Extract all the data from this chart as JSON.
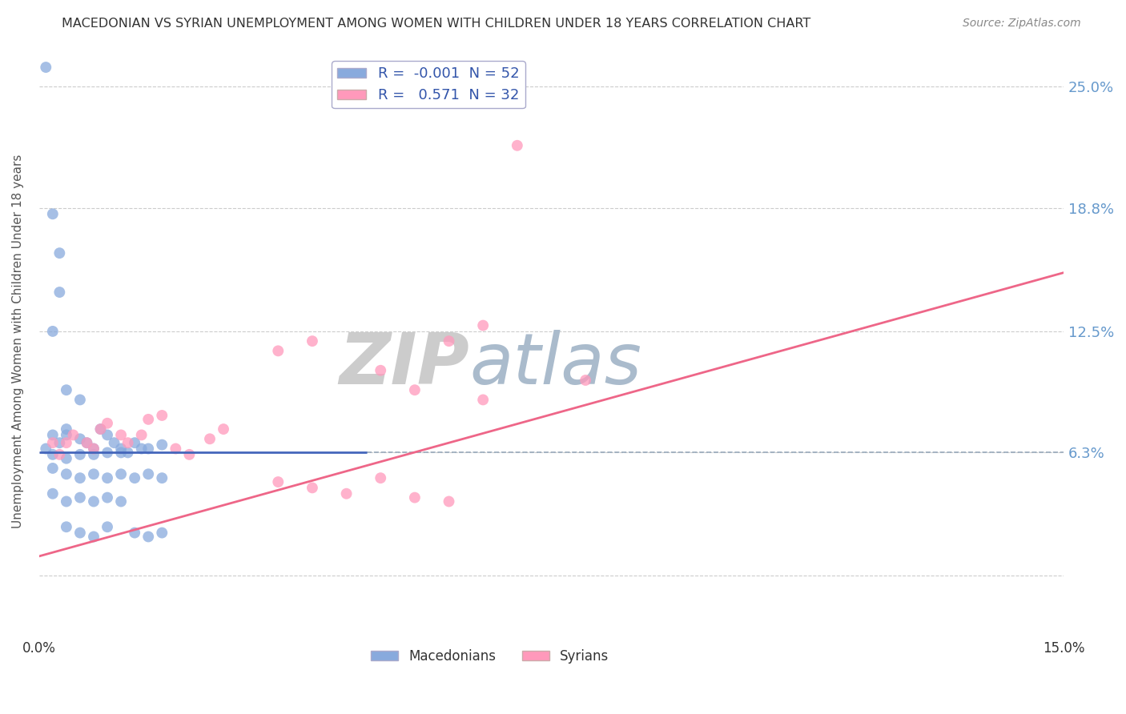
{
  "title": "MACEDONIAN VS SYRIAN UNEMPLOYMENT AMONG WOMEN WITH CHILDREN UNDER 18 YEARS CORRELATION CHART",
  "source": "Source: ZipAtlas.com",
  "ylabel": "Unemployment Among Women with Children Under 18 years",
  "xlim": [
    0.0,
    0.15
  ],
  "ylim": [
    -0.03,
    0.27
  ],
  "yticks": [
    0.0,
    0.063,
    0.125,
    0.188,
    0.25
  ],
  "ytick_labels": [
    "",
    "6.3%",
    "12.5%",
    "18.8%",
    "25.0%"
  ],
  "xticks": [
    0.0,
    0.15
  ],
  "xtick_labels": [
    "0.0%",
    "15.0%"
  ],
  "macedonian_color": "#88AADD",
  "syrian_color": "#FF99BB",
  "macedonian_R": -0.001,
  "macedonian_N": 52,
  "syrian_R": 0.571,
  "syrian_N": 32,
  "mac_line_x": [
    0.0,
    0.048
  ],
  "mac_line_y": [
    0.063,
    0.063
  ],
  "syr_line_x": [
    0.0,
    0.15
  ],
  "syr_line_y": [
    0.01,
    0.155
  ],
  "dashed_line_x": [
    0.048,
    0.15
  ],
  "dashed_line_y": [
    0.063,
    0.063
  ],
  "macedonian_scatter": [
    [
      0.002,
      0.185
    ],
    [
      0.003,
      0.165
    ],
    [
      0.001,
      0.26
    ],
    [
      0.003,
      0.145
    ],
    [
      0.002,
      0.125
    ],
    [
      0.004,
      0.095
    ],
    [
      0.006,
      0.09
    ],
    [
      0.004,
      0.075
    ],
    [
      0.002,
      0.072
    ],
    [
      0.001,
      0.065
    ],
    [
      0.003,
      0.068
    ],
    [
      0.004,
      0.072
    ],
    [
      0.006,
      0.07
    ],
    [
      0.007,
      0.068
    ],
    [
      0.009,
      0.075
    ],
    [
      0.01,
      0.072
    ],
    [
      0.008,
      0.065
    ],
    [
      0.011,
      0.068
    ],
    [
      0.012,
      0.065
    ],
    [
      0.014,
      0.068
    ],
    [
      0.016,
      0.065
    ],
    [
      0.018,
      0.067
    ],
    [
      0.013,
      0.063
    ],
    [
      0.015,
      0.065
    ],
    [
      0.002,
      0.062
    ],
    [
      0.004,
      0.06
    ],
    [
      0.006,
      0.062
    ],
    [
      0.008,
      0.062
    ],
    [
      0.01,
      0.063
    ],
    [
      0.012,
      0.063
    ],
    [
      0.002,
      0.055
    ],
    [
      0.004,
      0.052
    ],
    [
      0.006,
      0.05
    ],
    [
      0.008,
      0.052
    ],
    [
      0.01,
      0.05
    ],
    [
      0.012,
      0.052
    ],
    [
      0.014,
      0.05
    ],
    [
      0.016,
      0.052
    ],
    [
      0.018,
      0.05
    ],
    [
      0.002,
      0.042
    ],
    [
      0.004,
      0.038
    ],
    [
      0.006,
      0.04
    ],
    [
      0.008,
      0.038
    ],
    [
      0.01,
      0.04
    ],
    [
      0.012,
      0.038
    ],
    [
      0.004,
      0.025
    ],
    [
      0.006,
      0.022
    ],
    [
      0.008,
      0.02
    ],
    [
      0.01,
      0.025
    ],
    [
      0.014,
      0.022
    ],
    [
      0.016,
      0.02
    ],
    [
      0.018,
      0.022
    ]
  ],
  "syrian_scatter": [
    [
      0.002,
      0.068
    ],
    [
      0.003,
      0.062
    ],
    [
      0.004,
      0.068
    ],
    [
      0.005,
      0.072
    ],
    [
      0.007,
      0.068
    ],
    [
      0.008,
      0.065
    ],
    [
      0.009,
      0.075
    ],
    [
      0.01,
      0.078
    ],
    [
      0.012,
      0.072
    ],
    [
      0.013,
      0.068
    ],
    [
      0.015,
      0.072
    ],
    [
      0.016,
      0.08
    ],
    [
      0.018,
      0.082
    ],
    [
      0.02,
      0.065
    ],
    [
      0.022,
      0.062
    ],
    [
      0.025,
      0.07
    ],
    [
      0.027,
      0.075
    ],
    [
      0.035,
      0.115
    ],
    [
      0.04,
      0.12
    ],
    [
      0.05,
      0.105
    ],
    [
      0.055,
      0.095
    ],
    [
      0.06,
      0.12
    ],
    [
      0.065,
      0.128
    ],
    [
      0.07,
      0.22
    ],
    [
      0.035,
      0.048
    ],
    [
      0.04,
      0.045
    ],
    [
      0.045,
      0.042
    ],
    [
      0.05,
      0.05
    ],
    [
      0.055,
      0.04
    ],
    [
      0.06,
      0.038
    ],
    [
      0.065,
      0.09
    ],
    [
      0.08,
      0.1
    ]
  ],
  "background_color": "#ffffff",
  "grid_color": "#cccccc",
  "title_color": "#333333",
  "watermark_color": "#ccddee",
  "right_tick_color": "#6699cc"
}
